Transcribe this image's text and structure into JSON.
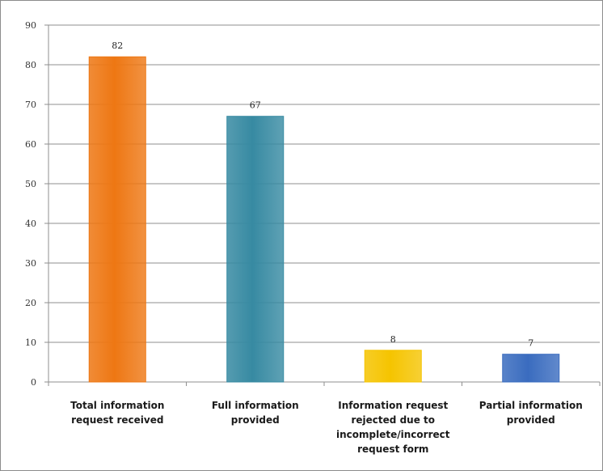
{
  "chart_data": {
    "type": "bar",
    "categories": [
      [
        "Total information",
        "request received"
      ],
      [
        "Full information",
        "provided"
      ],
      [
        "Information request",
        "rejected due to",
        "incomplete/incorrect",
        "request form"
      ],
      [
        "Partial information",
        "provided"
      ]
    ],
    "values": [
      82,
      67,
      8,
      7
    ],
    "data_labels": [
      "82",
      "67",
      "8",
      "7"
    ],
    "colors": [
      "#ee7713",
      "#378aa2",
      "#f5c400",
      "#3a6cbf"
    ],
    "ylim": [
      0,
      90
    ],
    "yticks": [
      "0",
      "10",
      "20",
      "30",
      "40",
      "50",
      "60",
      "70",
      "80",
      "90"
    ],
    "title": "",
    "xlabel": "",
    "ylabel": "",
    "grid": true,
    "legend": "none"
  }
}
